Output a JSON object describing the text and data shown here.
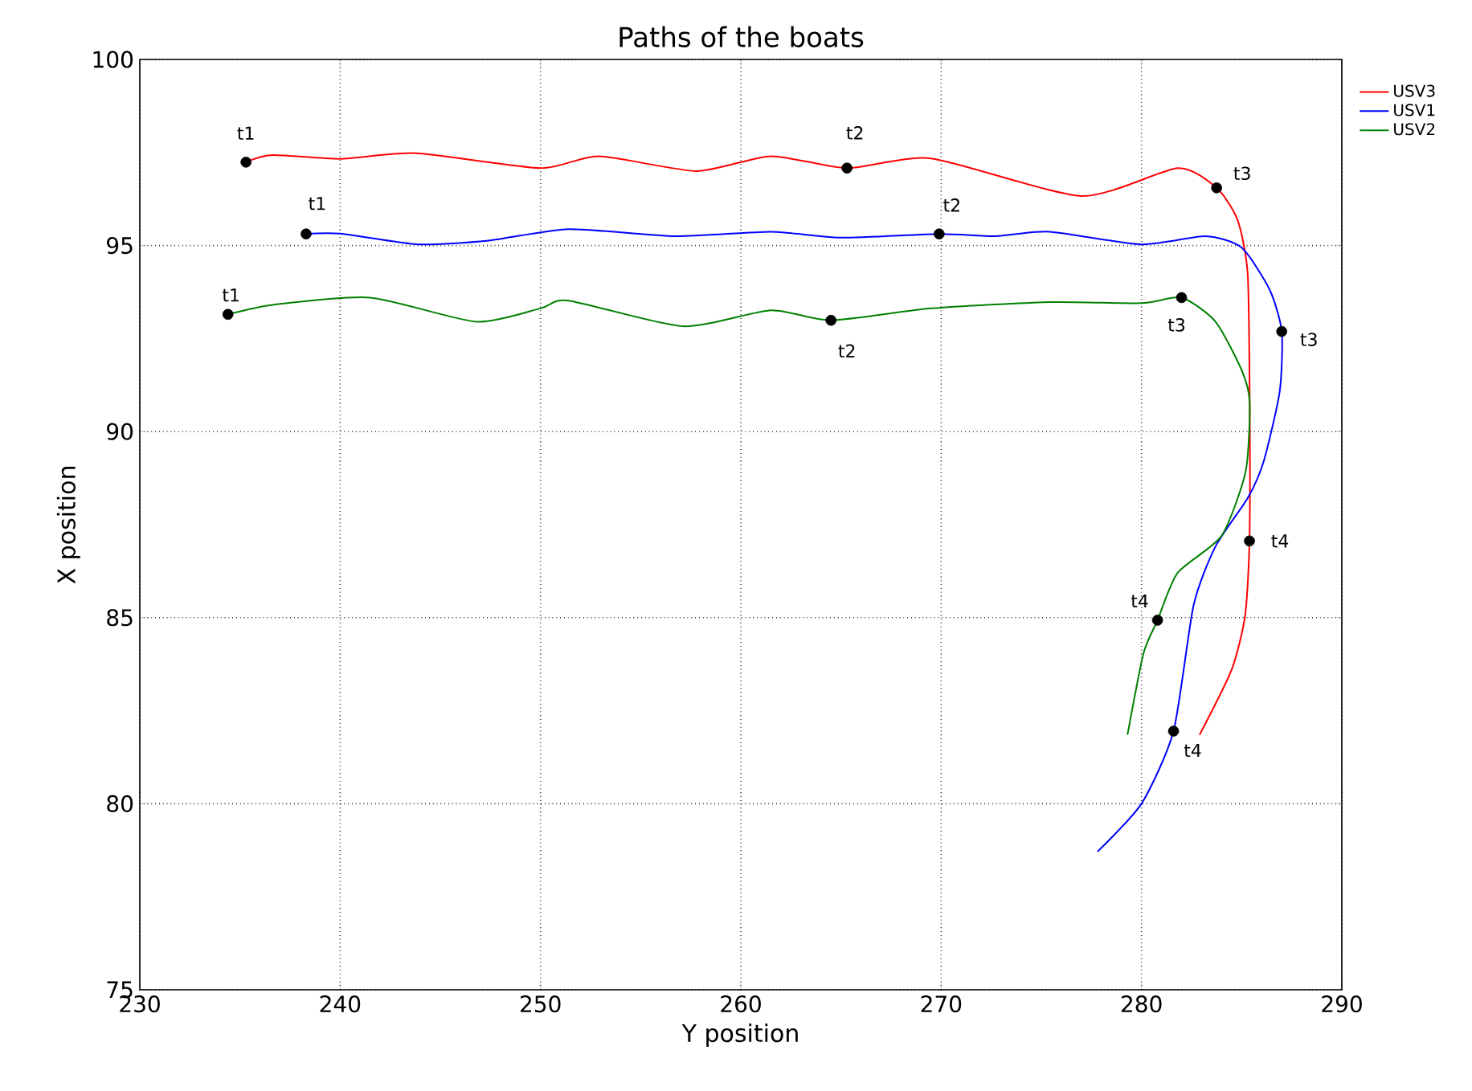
{
  "chart_data": {
    "type": "line",
    "title": "Paths of the boats",
    "xlabel": "Y position",
    "ylabel": "X position",
    "xlim": [
      230,
      290
    ],
    "ylim": [
      75,
      100
    ],
    "xticks": [
      230,
      240,
      250,
      260,
      270,
      280,
      290
    ],
    "yticks": [
      75,
      80,
      85,
      90,
      95,
      100
    ],
    "grid": true,
    "legend": "top right",
    "marker": "none",
    "line_style": "solid",
    "series": [
      {
        "name": "USV3",
        "color": "#ff0000",
        "x": [
          235.3,
          236.6,
          240,
          243.8,
          250,
          252.9,
          257.8,
          261.5,
          265.3,
          269.5,
          277,
          281.8,
          283.75,
          284.8,
          285.3,
          285.4,
          285.39,
          285.17,
          284.5,
          282.9
        ],
        "values": [
          97.24,
          97.43,
          97.33,
          97.48,
          97.08,
          97.4,
          97.0,
          97.4,
          97.08,
          97.34,
          96.33,
          97.08,
          96.55,
          95.68,
          94.24,
          90.8,
          87.06,
          85.05,
          83.6,
          81.85
        ]
      },
      {
        "name": "USV1",
        "color": "#0000ff",
        "x": [
          238.3,
          240,
          243.9,
          247.4,
          251.4,
          256.7,
          261.5,
          265,
          269.9,
          272.7,
          275.4,
          280,
          283.2,
          285,
          286.4,
          287.0,
          286.9,
          286.1,
          285.3,
          283.7,
          282.6,
          281.6,
          280,
          277.8
        ],
        "values": [
          95.31,
          95.32,
          95.03,
          95.13,
          95.44,
          95.25,
          95.37,
          95.21,
          95.31,
          95.25,
          95.37,
          95.03,
          95.25,
          94.94,
          93.81,
          92.69,
          91.08,
          89.2,
          88.21,
          86.92,
          85.33,
          81.95,
          80,
          78.71
        ]
      },
      {
        "name": "USV2",
        "color": "#008000",
        "x": [
          234.4,
          236.7,
          241.5,
          246.8,
          250,
          251.4,
          257.1,
          261.5,
          264.5,
          269.5,
          275.4,
          280,
          282.0,
          283.7,
          285.0,
          285.4,
          285.2,
          284.0,
          281.8,
          280.8,
          280.1,
          279.3
        ],
        "values": [
          93.15,
          93.41,
          93.6,
          92.95,
          93.31,
          93.52,
          92.83,
          93.26,
          92.99,
          93.31,
          93.48,
          93.45,
          93.6,
          92.95,
          91.65,
          90.8,
          88.93,
          87.2,
          86.2,
          84.93,
          84.04,
          81.85
        ]
      },
      {
        "type": "scatter",
        "color": "#000000",
        "marker": "circle",
        "x": [
          235.3,
          265.3,
          283.75,
          285.39,
          238.3,
          269.9,
          287.0,
          281.6,
          234.4,
          264.5,
          282.0,
          280.8
        ],
        "values": [
          97.24,
          97.08,
          96.55,
          87.06,
          95.31,
          95.31,
          92.69,
          81.95,
          93.15,
          92.99,
          93.6,
          84.93
        ]
      }
    ],
    "annotations": [
      {
        "text": "t1",
        "x": 235.3,
        "y": 97.24
      },
      {
        "text": "t2",
        "x": 265.3,
        "y": 97.08
      },
      {
        "text": "t3",
        "x": 283.75,
        "y": 96.55
      },
      {
        "text": "t4",
        "x": 285.39,
        "y": 87.06
      },
      {
        "text": "t1",
        "x": 238.3,
        "y": 95.31
      },
      {
        "text": "t2",
        "x": 269.9,
        "y": 95.31
      },
      {
        "text": "t3",
        "x": 287.0,
        "y": 92.69
      },
      {
        "text": "t4",
        "x": 281.6,
        "y": 81.95
      },
      {
        "text": "t1",
        "x": 234.4,
        "y": 93.15
      },
      {
        "text": "t2",
        "x": 264.5,
        "y": 92.99
      },
      {
        "text": "t3",
        "x": 282.0,
        "y": 93.6
      },
      {
        "text": "t4",
        "x": 280.8,
        "y": 84.93
      }
    ]
  }
}
